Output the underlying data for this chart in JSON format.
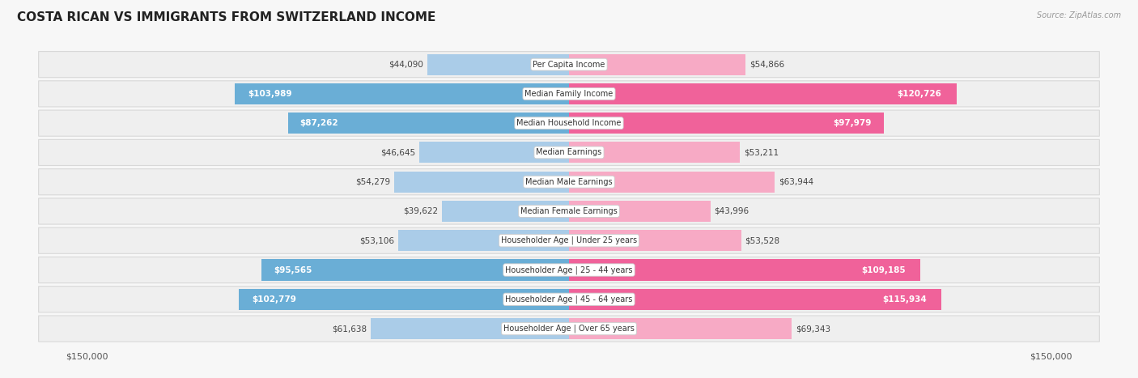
{
  "title": "COSTA RICAN VS IMMIGRANTS FROM SWITZERLAND INCOME",
  "source": "Source: ZipAtlas.com",
  "categories": [
    "Per Capita Income",
    "Median Family Income",
    "Median Household Income",
    "Median Earnings",
    "Median Male Earnings",
    "Median Female Earnings",
    "Householder Age | Under 25 years",
    "Householder Age | 25 - 44 years",
    "Householder Age | 45 - 64 years",
    "Householder Age | Over 65 years"
  ],
  "costa_rican": [
    44090,
    103989,
    87262,
    46645,
    54279,
    39622,
    53106,
    95565,
    102779,
    61638
  ],
  "switzerland": [
    54866,
    120726,
    97979,
    53211,
    63944,
    43996,
    53528,
    109185,
    115934,
    69343
  ],
  "max_value": 150000,
  "color_cr_large": "#6aaed6",
  "color_cr_small": "#aacce8",
  "color_sw_large": "#f0629a",
  "color_sw_small": "#f7aac5",
  "background_color": "#f7f7f7",
  "row_bg_color": "#efefef",
  "row_border_color": "#d8d8d8",
  "label_box_color": "#ffffff",
  "title_fontsize": 11,
  "label_fontsize": 7,
  "value_fontsize": 7.5,
  "legend_fontsize": 8,
  "large_threshold": 70000
}
